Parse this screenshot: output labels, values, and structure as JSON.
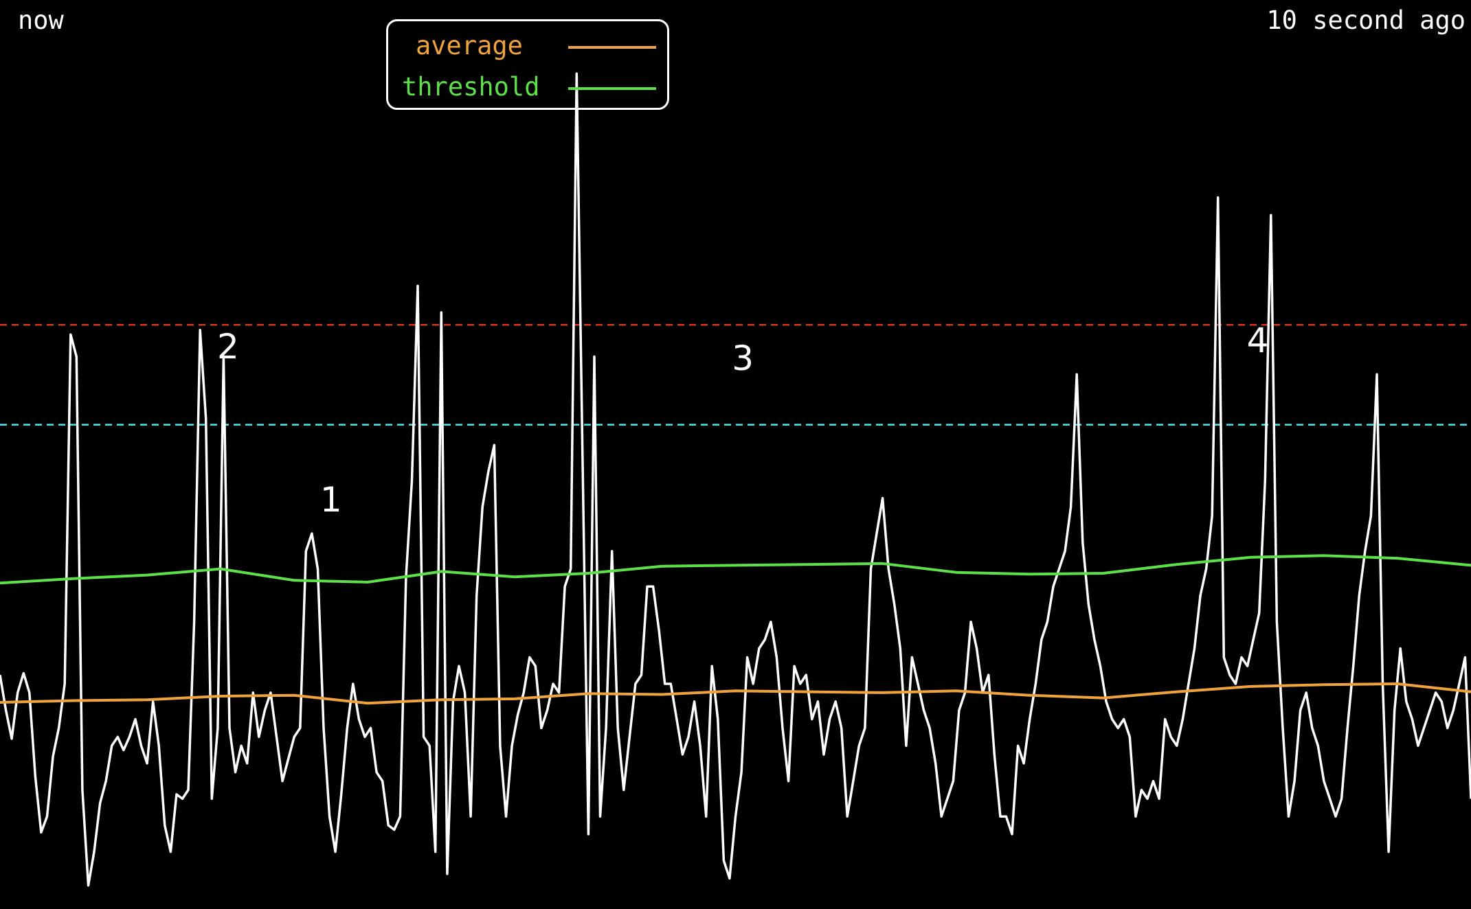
{
  "header": {
    "left_label": "now",
    "right_label": "10 second ago"
  },
  "colors": {
    "background": "#000000",
    "signal": "#ffffff",
    "average": "#f0a23c",
    "threshold": "#5ee04a",
    "red_line": "#d93a1e",
    "cyan_line": "#4fe6ee"
  },
  "chart_data": {
    "type": "line",
    "title": "",
    "xlabel": "",
    "ylabel": "",
    "xlim": [
      0,
      1.0
    ],
    "ylim": [
      0,
      1.0
    ],
    "grid": false,
    "legend": {
      "placement": "top-left",
      "entries": [
        {
          "name": "average",
          "color": "#f0a23c"
        },
        {
          "name": "threshold",
          "color": "#5ee04a"
        }
      ]
    },
    "reference_lines": [
      {
        "y": 0.656,
        "color": "#d93a1e",
        "style": "dashed"
      },
      {
        "y": 0.543,
        "color": "#4fe6ee",
        "style": "dashed"
      }
    ],
    "annotations": [
      {
        "text": "1",
        "x": 0.225,
        "y": 0.445
      },
      {
        "text": "2",
        "x": 0.155,
        "y": 0.618
      },
      {
        "text": "3",
        "x": 0.505,
        "y": 0.605
      },
      {
        "text": "4",
        "x": 0.855,
        "y": 0.625
      }
    ],
    "series": [
      {
        "name": "average",
        "color": "#f0a23c",
        "x": [
          0,
          0.05,
          0.1,
          0.15,
          0.2,
          0.25,
          0.3,
          0.35,
          0.4,
          0.45,
          0.5,
          0.55,
          0.6,
          0.65,
          0.7,
          0.75,
          0.8,
          0.85,
          0.9,
          0.95,
          1.0
        ],
        "values": [
          0.229,
          0.231,
          0.232,
          0.236,
          0.237,
          0.228,
          0.232,
          0.233,
          0.239,
          0.238,
          0.242,
          0.241,
          0.24,
          0.242,
          0.237,
          0.234,
          0.241,
          0.247,
          0.249,
          0.25,
          0.241
        ]
      },
      {
        "name": "threshold",
        "color": "#5ee04a",
        "x": [
          0,
          0.05,
          0.1,
          0.15,
          0.2,
          0.25,
          0.3,
          0.35,
          0.4,
          0.45,
          0.5,
          0.55,
          0.6,
          0.65,
          0.7,
          0.75,
          0.8,
          0.85,
          0.9,
          0.95,
          1.0
        ],
        "values": [
          0.364,
          0.369,
          0.373,
          0.38,
          0.367,
          0.365,
          0.377,
          0.371,
          0.375,
          0.383,
          0.384,
          0.385,
          0.386,
          0.376,
          0.374,
          0.375,
          0.385,
          0.393,
          0.395,
          0.392,
          0.384
        ]
      },
      {
        "name": "",
        "color": "#ffffff",
        "x": [
          0,
          0.004,
          0.008,
          0.012,
          0.016,
          0.02,
          0.024,
          0.028,
          0.032,
          0.036,
          0.04,
          0.044,
          0.048,
          0.052,
          0.056,
          0.06,
          0.064,
          0.068,
          0.072,
          0.076,
          0.08,
          0.084,
          0.088,
          0.092,
          0.096,
          0.1,
          0.104,
          0.108,
          0.112,
          0.116,
          0.12,
          0.124,
          0.128,
          0.132,
          0.136,
          0.14,
          0.144,
          0.148,
          0.152,
          0.156,
          0.16,
          0.164,
          0.168,
          0.172,
          0.176,
          0.18,
          0.184,
          0.188,
          0.192,
          0.196,
          0.2,
          0.204,
          0.208,
          0.212,
          0.216,
          0.22,
          0.224,
          0.228,
          0.232,
          0.236,
          0.24,
          0.244,
          0.248,
          0.252,
          0.256,
          0.26,
          0.264,
          0.268,
          0.272,
          0.276,
          0.28,
          0.284,
          0.288,
          0.292,
          0.296,
          0.3,
          0.304,
          0.308,
          0.312,
          0.316,
          0.32,
          0.324,
          0.328,
          0.332,
          0.336,
          0.34,
          0.344,
          0.348,
          0.352,
          0.356,
          0.36,
          0.364,
          0.368,
          0.372,
          0.376,
          0.38,
          0.384,
          0.388,
          0.392,
          0.396,
          0.4,
          0.404,
          0.408,
          0.412,
          0.416,
          0.42,
          0.424,
          0.428,
          0.432,
          0.436,
          0.44,
          0.444,
          0.448,
          0.452,
          0.456,
          0.46,
          0.464,
          0.468,
          0.472,
          0.476,
          0.48,
          0.484,
          0.488,
          0.492,
          0.496,
          0.5,
          0.504,
          0.508,
          0.512,
          0.516,
          0.52,
          0.524,
          0.528,
          0.532,
          0.536,
          0.54,
          0.544,
          0.548,
          0.552,
          0.556,
          0.56,
          0.564,
          0.568,
          0.572,
          0.576,
          0.58,
          0.584,
          0.588,
          0.592,
          0.596,
          0.6,
          0.604,
          0.608,
          0.612,
          0.616,
          0.62,
          0.624,
          0.628,
          0.632,
          0.636,
          0.64,
          0.644,
          0.648,
          0.652,
          0.656,
          0.66,
          0.664,
          0.668,
          0.672,
          0.676,
          0.68,
          0.684,
          0.688,
          0.692,
          0.696,
          0.7,
          0.704,
          0.708,
          0.712,
          0.716,
          0.72,
          0.724,
          0.728,
          0.732,
          0.736,
          0.74,
          0.744,
          0.748,
          0.752,
          0.756,
          0.76,
          0.764,
          0.768,
          0.772,
          0.776,
          0.78,
          0.784,
          0.788,
          0.792,
          0.796,
          0.8,
          0.804,
          0.808,
          0.812,
          0.816,
          0.82,
          0.824,
          0.828,
          0.832,
          0.836,
          0.84,
          0.844,
          0.848,
          0.852,
          0.856,
          0.86,
          0.864,
          0.868,
          0.872,
          0.876,
          0.88,
          0.884,
          0.888,
          0.892,
          0.896,
          0.9,
          0.904,
          0.908,
          0.912,
          0.916,
          0.92,
          0.924,
          0.928,
          0.932,
          0.936,
          0.94,
          0.944,
          0.948,
          0.952,
          0.956,
          0.96,
          0.964,
          0.968,
          0.972,
          0.976,
          0.98,
          0.984,
          0.988,
          0.992,
          0.996,
          1.0
        ],
        "values": [
          0.26,
          0.22,
          0.188,
          0.24,
          0.262,
          0.24,
          0.145,
          0.082,
          0.1,
          0.168,
          0.2,
          0.25,
          0.645,
          0.62,
          0.13,
          0.022,
          0.06,
          0.115,
          0.14,
          0.18,
          0.19,
          0.175,
          0.19,
          0.21,
          0.18,
          0.16,
          0.23,
          0.18,
          0.09,
          0.06,
          0.125,
          0.12,
          0.13,
          0.32,
          0.65,
          0.55,
          0.12,
          0.2,
          0.62,
          0.2,
          0.15,
          0.18,
          0.16,
          0.24,
          0.19,
          0.22,
          0.24,
          0.19,
          0.14,
          0.165,
          0.19,
          0.2,
          0.4,
          0.42,
          0.38,
          0.2,
          0.1,
          0.06,
          0.125,
          0.2,
          0.25,
          0.21,
          0.19,
          0.2,
          0.15,
          0.14,
          0.09,
          0.085,
          0.1,
          0.37,
          0.48,
          0.7,
          0.19,
          0.18,
          0.06,
          0.67,
          0.035,
          0.23,
          0.27,
          0.24,
          0.1,
          0.35,
          0.45,
          0.49,
          0.52,
          0.18,
          0.1,
          0.18,
          0.215,
          0.24,
          0.28,
          0.27,
          0.2,
          0.22,
          0.25,
          0.24,
          0.36,
          0.38,
          0.94,
          0.51,
          0.08,
          0.62,
          0.1,
          0.2,
          0.4,
          0.2,
          0.13,
          0.19,
          0.25,
          0.26,
          0.36,
          0.36,
          0.31,
          0.25,
          0.25,
          0.21,
          0.17,
          0.19,
          0.23,
          0.18,
          0.1,
          0.27,
          0.21,
          0.05,
          0.03,
          0.1,
          0.15,
          0.28,
          0.25,
          0.29,
          0.3,
          0.32,
          0.28,
          0.2,
          0.14,
          0.27,
          0.25,
          0.26,
          0.21,
          0.23,
          0.17,
          0.21,
          0.23,
          0.2,
          0.1,
          0.14,
          0.18,
          0.2,
          0.38,
          0.42,
          0.46,
          0.38,
          0.34,
          0.29,
          0.18,
          0.28,
          0.25,
          0.22,
          0.2,
          0.16,
          0.1,
          0.12,
          0.14,
          0.22,
          0.24,
          0.32,
          0.29,
          0.24,
          0.26,
          0.17,
          0.1,
          0.1,
          0.08,
          0.18,
          0.16,
          0.21,
          0.25,
          0.3,
          0.32,
          0.36,
          0.38,
          0.4,
          0.45,
          0.6,
          0.41,
          0.34,
          0.3,
          0.27,
          0.23,
          0.21,
          0.2,
          0.21,
          0.19,
          0.1,
          0.13,
          0.12,
          0.14,
          0.12,
          0.21,
          0.19,
          0.18,
          0.21,
          0.25,
          0.29,
          0.35,
          0.38,
          0.44,
          0.8,
          0.28,
          0.26,
          0.25,
          0.28,
          0.27,
          0.3,
          0.33,
          0.48,
          0.78,
          0.32,
          0.2,
          0.1,
          0.14,
          0.22,
          0.24,
          0.2,
          0.18,
          0.14,
          0.12,
          0.1,
          0.12,
          0.2,
          0.27,
          0.35,
          0.4,
          0.44,
          0.6,
          0.25,
          0.06,
          0.22,
          0.29,
          0.23,
          0.21,
          0.18,
          0.2,
          0.22,
          0.24,
          0.23,
          0.2,
          0.22,
          0.25,
          0.28,
          0.12
        ]
      }
    ]
  }
}
